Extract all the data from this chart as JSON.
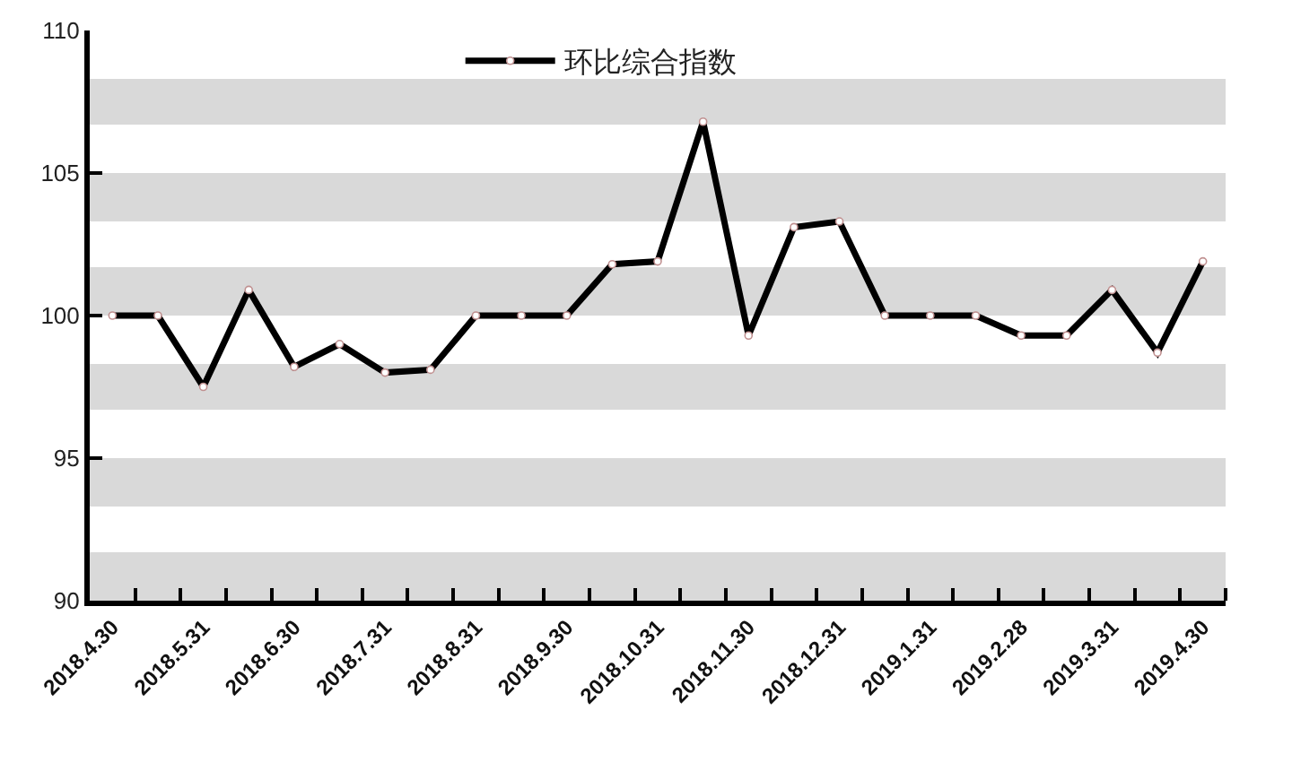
{
  "chart_data": {
    "type": "line",
    "categories": [
      "2018.4.30",
      null,
      "2018.5.31",
      null,
      "2018.6.30",
      null,
      "2018.7.31",
      null,
      "2018.8.31",
      null,
      "2018.9.30",
      null,
      "2018.10.31",
      null,
      "2018.11.30",
      null,
      "2018.12.31",
      null,
      "2019.1.31",
      null,
      "2019.2.28",
      null,
      "2019.3.31",
      null,
      "2019.4.30"
    ],
    "series": [
      {
        "name": "环比综合指数",
        "color": "#000000",
        "values": [
          100.0,
          100.0,
          97.5,
          100.9,
          98.2,
          99.0,
          98.0,
          98.1,
          100.0,
          100.0,
          100.0,
          101.8,
          101.9,
          106.8,
          99.3,
          103.1,
          103.3,
          100.0,
          100.0,
          100.0,
          99.3,
          99.3,
          100.9,
          98.7,
          101.9
        ]
      }
    ],
    "ylim": [
      90,
      110
    ],
    "yticks": [
      90,
      95,
      100,
      105,
      110
    ],
    "bands": [
      {
        "axis": "y",
        "from": 90,
        "to": 91.7,
        "color": "#d9d9d9"
      },
      {
        "axis": "y",
        "from": 93.3,
        "to": 95,
        "color": "#d9d9d9"
      },
      {
        "axis": "y",
        "from": 96.7,
        "to": 98.3,
        "color": "#d9d9d9"
      },
      {
        "axis": "y",
        "from": 100,
        "to": 101.7,
        "color": "#d9d9d9"
      },
      {
        "axis": "y",
        "from": 103.3,
        "to": 105,
        "color": "#d9d9d9"
      },
      {
        "axis": "y",
        "from": 106.7,
        "to": 108.3,
        "color": "#d9d9d9"
      }
    ],
    "legend": "top",
    "marker": "circle",
    "line_style": "solid",
    "grid": false
  }
}
